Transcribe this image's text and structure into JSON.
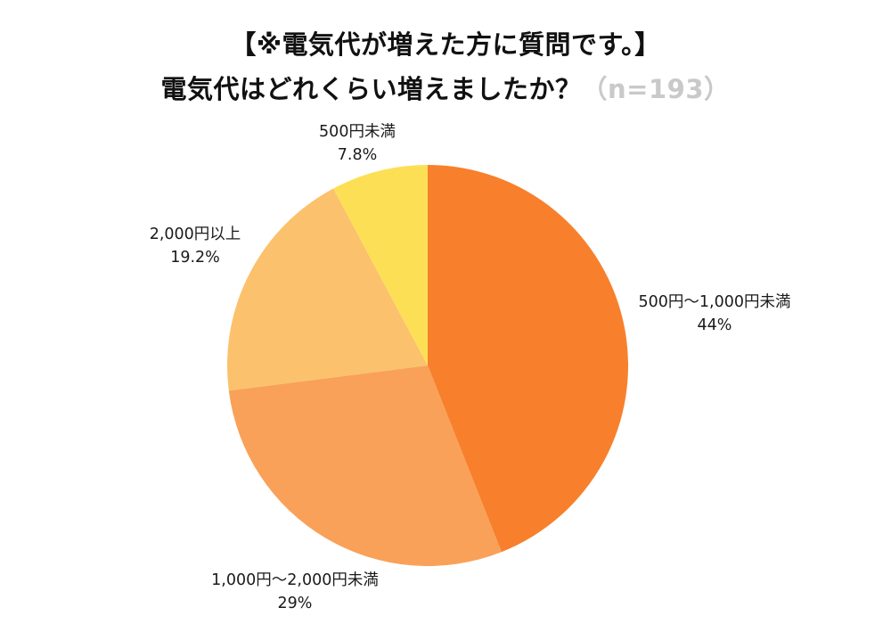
{
  "page": {
    "title_line1": "【※電気代が増えた方に質問です。】",
    "title_line2": "電気代はどれくらい増えましたか？",
    "sample_size": "（n=193）"
  },
  "chart_data": {
    "type": "pie",
    "title": "【※電気代が増えた方に質問です。】電気代はどれくらい増えましたか？",
    "sample_label": "n=193",
    "sample_n": 193,
    "start_angle_deg": -90,
    "direction": "clockwise",
    "legend": "none",
    "labels_position": "outside",
    "total": 100,
    "slices": [
      {
        "label": "500円〜1,000円未満",
        "value": 44,
        "display": "44%",
        "color": "#F8802C"
      },
      {
        "label": "1,000円〜2,000円未満",
        "value": 29,
        "display": "29%",
        "color": "#F9A159"
      },
      {
        "label": "2,000円以上",
        "value": 19.2,
        "display": "19.2%",
        "color": "#FBC16C"
      },
      {
        "label": "500円未満",
        "value": 7.8,
        "display": "7.8%",
        "color": "#FDDF55"
      }
    ]
  }
}
